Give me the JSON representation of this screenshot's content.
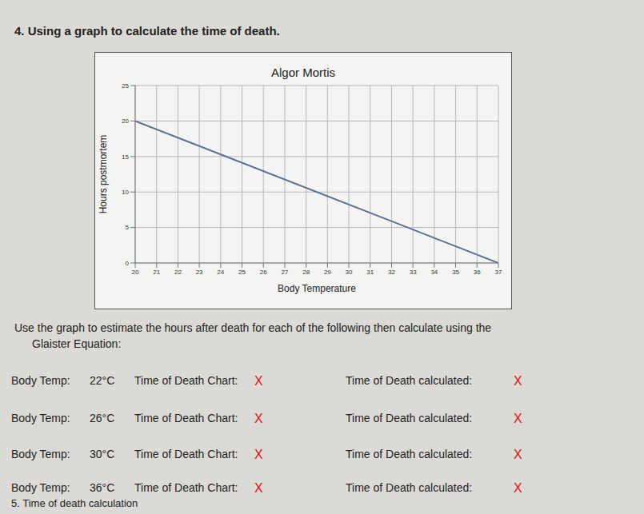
{
  "question": "4. Using a graph to calculate the time of death.",
  "chart_data": {
    "type": "line",
    "title": "Algor Mortis",
    "x_label": "Body Temperature",
    "y_label": "Hours postmortem",
    "x": [
      20,
      37
    ],
    "values": [
      20,
      0
    ],
    "color": "#5b6f99",
    "xlim": [
      20,
      37
    ],
    "xticks": [
      20,
      21,
      22,
      23,
      24,
      25,
      26,
      27,
      28,
      29,
      30,
      31,
      32,
      33,
      34,
      35,
      36,
      37
    ],
    "ylim": [
      0,
      25
    ],
    "yticks": [
      0,
      5,
      10,
      15,
      20,
      25
    ],
    "grid": true
  },
  "instruction": "Use the graph to estimate the hours after death for each of the following then calculate using the",
  "instruction_line2": "Glaister Equation:",
  "rows": [
    {
      "temp_label": "Body Temp:",
      "temp": "22°C",
      "chart_label": "Time of Death Chart:",
      "chart_answer": "X",
      "calc_label": "Time of Death calculated:",
      "calc_answer": "X"
    },
    {
      "temp_label": "Body Temp:",
      "temp": "26°C",
      "chart_label": "Time of Death Chart:",
      "chart_answer": "X",
      "calc_label": "Time of Death calculated:",
      "calc_answer": "X"
    },
    {
      "temp_label": "Body Temp:",
      "temp": "30°C",
      "chart_label": "Time of Death Chart:",
      "chart_answer": "X",
      "calc_label": "Time of Death calculated:",
      "calc_answer": "X"
    },
    {
      "temp_label": "Body Temp:",
      "temp": "36°C",
      "chart_label": "Time of Death Chart:",
      "chart_answer": "X",
      "calc_label": "Time of Death calculated:",
      "calc_answer": "X"
    }
  ],
  "footer": "5. Time of death calculation"
}
